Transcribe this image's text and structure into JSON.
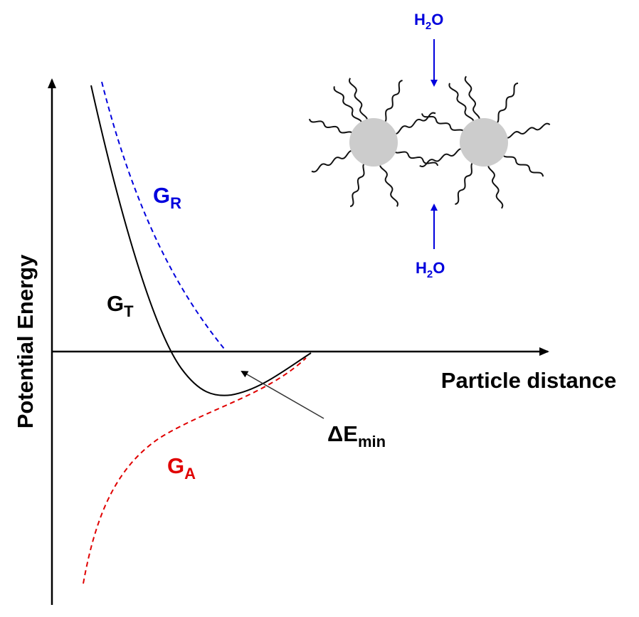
{
  "axes": {
    "y_label": "Potential Energy",
    "x_label": "Particle distance"
  },
  "curves": [
    {
      "symbol": "G",
      "subscript": "R"
    },
    {
      "symbol": "G",
      "subscript": "T"
    },
    {
      "symbol": "G",
      "subscript": "A"
    }
  ],
  "annotation": {
    "symbol": "ΔE",
    "subscript": "min"
  },
  "water": [
    {
      "parts": [
        "H",
        "2",
        "O"
      ]
    },
    {
      "parts": [
        "H",
        "2",
        "O"
      ]
    }
  ]
}
